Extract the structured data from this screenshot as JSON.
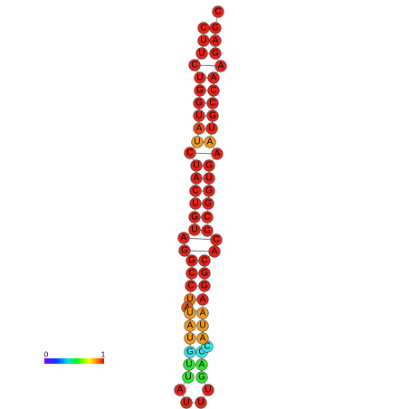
{
  "nodes": [
    {
      "label": "C",
      "color": "#e8231a"
    },
    {
      "label": "U",
      "color": "#e8231a"
    },
    {
      "label": "U",
      "color": "#e8231a"
    },
    {
      "label": "C",
      "color": "#e8231a"
    },
    {
      "label": "U",
      "color": "#e8231a"
    },
    {
      "label": "G",
      "color": "#e8231a"
    },
    {
      "label": "G",
      "color": "#e8231a"
    },
    {
      "label": "U",
      "color": "#e8231a"
    },
    {
      "label": "A",
      "color": "#ec4a1a"
    },
    {
      "label": "U",
      "color": "#f39a1a"
    },
    {
      "label": "C",
      "color": "#e8231a"
    },
    {
      "label": "U",
      "color": "#e8231a"
    },
    {
      "label": "A",
      "color": "#e8231a"
    },
    {
      "label": "C",
      "color": "#e8231a"
    },
    {
      "label": "U",
      "color": "#e8231a"
    },
    {
      "label": "G",
      "color": "#e8231a"
    },
    {
      "label": "U",
      "color": "#e8231a"
    },
    {
      "label": "A",
      "color": "#e8231a"
    },
    {
      "label": "G",
      "color": "#e8231a"
    },
    {
      "label": "G",
      "color": "#e8231a"
    },
    {
      "label": "C",
      "color": "#e8231a"
    },
    {
      "label": "C",
      "color": "#e8231a"
    },
    {
      "label": "U",
      "color": "#f07a1a"
    },
    {
      "label": "A",
      "color": "#ec5a1a"
    },
    {
      "label": "U",
      "color": "#f39a1a"
    },
    {
      "label": "A",
      "color": "#f39a1a"
    },
    {
      "label": "U",
      "color": "#f39a1a"
    },
    {
      "label": "G",
      "color": "#3de6e6"
    },
    {
      "label": "U",
      "color": "#33e633"
    },
    {
      "label": "U",
      "color": "#33e633"
    },
    {
      "label": "A",
      "color": "#e8231a"
    },
    {
      "label": "U",
      "color": "#e8231a"
    },
    {
      "label": "U",
      "color": "#e8231a"
    },
    {
      "label": "U",
      "color": "#e8231a"
    },
    {
      "label": "G",
      "color": "#33e633"
    },
    {
      "label": "A",
      "color": "#33e633"
    },
    {
      "label": "C",
      "color": "#3de6e6"
    },
    {
      "label": "C",
      "color": "#3de6e6"
    },
    {
      "label": "A",
      "color": "#f39a1a"
    },
    {
      "label": "U",
      "color": "#f39a1a"
    },
    {
      "label": "A",
      "color": "#f39a1a"
    },
    {
      "label": "A",
      "color": "#e8231a"
    },
    {
      "label": "G",
      "color": "#e8231a"
    },
    {
      "label": "G",
      "color": "#e8231a"
    },
    {
      "label": "C",
      "color": "#e8231a"
    },
    {
      "label": "A",
      "color": "#e8231a"
    },
    {
      "label": "C",
      "color": "#e8231a"
    },
    {
      "label": "G",
      "color": "#e8231a"
    },
    {
      "label": "C",
      "color": "#e8231a"
    },
    {
      "label": "G",
      "color": "#e8231a"
    },
    {
      "label": "G",
      "color": "#e8231a"
    },
    {
      "label": "U",
      "color": "#e8231a"
    },
    {
      "label": "G",
      "color": "#e8231a"
    },
    {
      "label": "A",
      "color": "#e8231a"
    },
    {
      "label": "A",
      "color": "#f39a1a"
    },
    {
      "label": "U",
      "color": "#e8231a"
    },
    {
      "label": "G",
      "color": "#e8231a"
    },
    {
      "label": "C",
      "color": "#e8231a"
    },
    {
      "label": "C",
      "color": "#e8231a"
    },
    {
      "label": "A",
      "color": "#e8231a"
    },
    {
      "label": "A",
      "color": "#e8231a"
    },
    {
      "label": "G",
      "color": "#e8231a"
    },
    {
      "label": "A",
      "color": "#e8231a"
    },
    {
      "label": "G",
      "color": "#e8231a"
    },
    {
      "label": "C",
      "color": "#e8231a"
    }
  ],
  "colorbar": {
    "min_label": "0",
    "max_label": "1"
  }
}
